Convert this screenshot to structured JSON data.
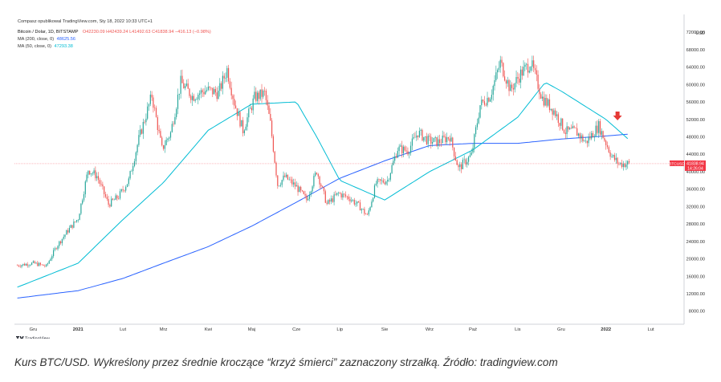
{
  "header": {
    "published": "Compasz opublikowal TradingView.com, Sty 18, 2022 10:33 UTC+1",
    "symbol": "Bitcoin / Dolar, 1D, BITSTAMP",
    "ohlc": "O42230.09 H42439.24 L41492.63 C41838.94 −416.13 (−0.98%)",
    "ma200": "MA (200, close, 0)",
    "ma200_value": "48625.56",
    "ma50": "MA (50, close, 0)",
    "ma50_value": "47293.38"
  },
  "price_labels": {
    "ticker": "BTCUSD",
    "last_price": "41838.94",
    "countdown": "14:26:04"
  },
  "axis_unit": "USD",
  "brand": "TradingView",
  "caption": "Kurs BTC/USD. Wykreślony przez średnie kroczące “krzyż śmierci” zaznaczony strzałką. Źródło: tradingview.com",
  "colors": {
    "up": "#26a69a",
    "down": "#ef5350",
    "ma200": "#2962ff",
    "ma50": "#00bcd4",
    "arrow": "#e53935",
    "price_line": "#f23645"
  },
  "chart_data": {
    "type": "line",
    "title": "Bitcoin / Dolar, 1D, BITSTAMP",
    "xlabel": "",
    "ylabel": "USD",
    "x_ticks": [
      "Gru",
      "2021",
      "Lut",
      "Mrz",
      "Kwi",
      "Maj",
      "Cze",
      "Lip",
      "Sie",
      "Wrz",
      "Paź",
      "Lis",
      "Gru",
      "2022",
      "Lut"
    ],
    "y_ticks": [
      8000,
      12000,
      16000,
      20000,
      24000,
      28000,
      32000,
      36000,
      40000,
      44000,
      48000,
      52000,
      56000,
      60000,
      64000,
      68000,
      72000
    ],
    "ylim": [
      5000,
      73500
    ],
    "grid": false,
    "legend": "top-left",
    "last_price": 41838.94,
    "annotation": "death cross arrow",
    "series": [
      {
        "name": "Bitcoin / Dolar, 1D, BITSTAMP",
        "x": [
          "2020-11-20",
          "2020-12-01",
          "2020-12-10",
          "2020-12-17",
          "2020-12-25",
          "2021-01-01",
          "2021-01-08",
          "2021-01-14",
          "2021-01-22",
          "2021-01-29",
          "2021-02-05",
          "2021-02-12",
          "2021-02-21",
          "2021-02-28",
          "2021-03-06",
          "2021-03-13",
          "2021-03-21",
          "2021-03-31",
          "2021-04-08",
          "2021-04-14",
          "2021-04-19",
          "2021-04-25",
          "2021-05-03",
          "2021-05-10",
          "2021-05-14",
          "2021-05-19",
          "2021-05-24",
          "2021-06-01",
          "2021-06-08",
          "2021-06-15",
          "2021-06-22",
          "2021-06-30",
          "2021-07-08",
          "2021-07-15",
          "2021-07-20",
          "2021-07-26",
          "2021-08-03",
          "2021-08-10",
          "2021-08-17",
          "2021-08-24",
          "2021-08-31",
          "2021-09-07",
          "2021-09-15",
          "2021-09-21",
          "2021-09-30",
          "2021-10-06",
          "2021-10-13",
          "2021-10-20",
          "2021-10-27",
          "2021-11-03",
          "2021-11-10",
          "2021-11-18",
          "2021-11-26",
          "2021-12-04",
          "2021-12-11",
          "2021-12-18",
          "2021-12-27",
          "2022-01-05",
          "2022-01-10",
          "2022-01-17"
        ],
        "values": [
          18500,
          19000,
          18300,
          22800,
          26500,
          29300,
          40500,
          39000,
          32500,
          34300,
          38000,
          47500,
          57500,
          45200,
          48900,
          60500,
          57300,
          58800,
          58000,
          63500,
          55900,
          49500,
          57000,
          58000,
          51000,
          37000,
          38800,
          36500,
          33500,
          40200,
          32500,
          35000,
          33900,
          31900,
          29800,
          37300,
          38100,
          45300,
          44800,
          49000,
          47100,
          46800,
          48100,
          40700,
          43800,
          55300,
          57500,
          65000,
          58700,
          62500,
          65000,
          56900,
          54000,
          49200,
          49300,
          46700,
          50500,
          43500,
          41800,
          41838.94
        ]
      },
      {
        "name": "MA (200, close, 0)",
        "x": [
          "2020-11-20",
          "2021-01-01",
          "2021-02-01",
          "2021-03-01",
          "2021-04-01",
          "2021-05-01",
          "2021-06-01",
          "2021-07-01",
          "2021-08-01",
          "2021-09-01",
          "2021-10-01",
          "2021-11-01",
          "2021-12-01",
          "2022-01-01",
          "2022-01-17"
        ],
        "values": [
          11000,
          12700,
          15500,
          19000,
          22800,
          27500,
          33000,
          38500,
          42500,
          46000,
          46500,
          46500,
          47500,
          48200,
          48625.56
        ]
      },
      {
        "name": "MA (50, close, 0)",
        "x": [
          "2020-11-20",
          "2021-01-01",
          "2021-02-01",
          "2021-03-01",
          "2021-04-01",
          "2021-05-01",
          "2021-06-01",
          "2021-06-15",
          "2021-07-01",
          "2021-08-01",
          "2021-09-01",
          "2021-10-01",
          "2021-11-01",
          "2021-11-20",
          "2021-12-01",
          "2022-01-01",
          "2022-01-17"
        ],
        "values": [
          13500,
          19000,
          29000,
          37500,
          49500,
          55500,
          56000,
          48000,
          38000,
          33500,
          40000,
          45000,
          52500,
          60500,
          58500,
          52000,
          47293.38
        ]
      }
    ]
  }
}
